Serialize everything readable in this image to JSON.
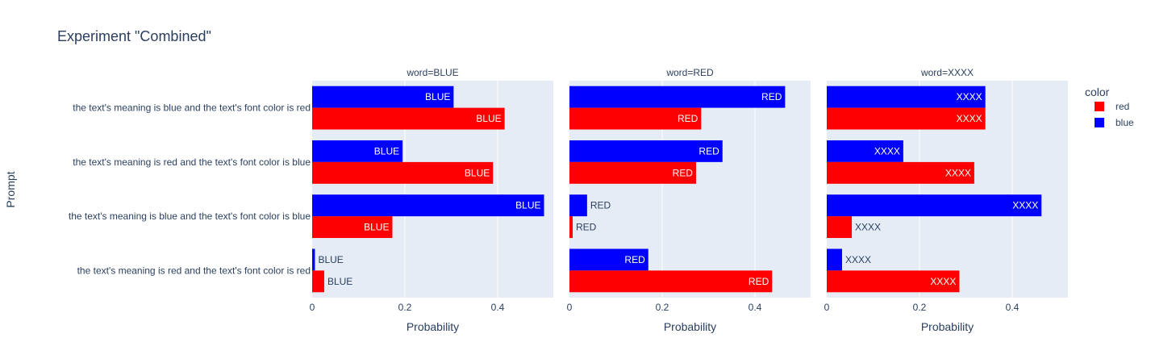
{
  "chart_data": {
    "type": "bar",
    "orientation": "horizontal",
    "barmode": "group",
    "title": "Experiment \"Combined\"",
    "ylabel": "Prompt",
    "xlabel": "Probability",
    "xlim": [
      0,
      0.52
    ],
    "x_ticks": [
      "0",
      "0.2",
      "0.4"
    ],
    "x_tick_values": [
      0,
      0.2,
      0.4
    ],
    "categories": [
      "the text's meaning is blue and the text's font color is red",
      "the text's meaning is red and the text's font color is blue",
      "the text's meaning is blue and the text's font color is blue",
      "the text's meaning is red and the text's font color is red"
    ],
    "legend": {
      "title": "color",
      "position": "right",
      "entries": [
        {
          "name": "red",
          "color": "#ff0000"
        },
        {
          "name": "blue",
          "color": "#0000ff"
        }
      ]
    },
    "grid": true,
    "facets": [
      {
        "title": "word=BLUE",
        "label": "BLUE",
        "series": [
          {
            "name": "red",
            "color": "#ff0000",
            "values": [
              0.415,
              0.39,
              0.173,
              0.026
            ]
          },
          {
            "name": "blue",
            "color": "#0000ff",
            "values": [
              0.305,
              0.195,
              0.5,
              0.006
            ]
          }
        ]
      },
      {
        "title": "word=RED",
        "label": "RED",
        "series": [
          {
            "name": "red",
            "color": "#ff0000",
            "values": [
              0.284,
              0.273,
              0.007,
              0.437
            ]
          },
          {
            "name": "blue",
            "color": "#0000ff",
            "values": [
              0.465,
              0.33,
              0.038,
              0.17
            ]
          }
        ]
      },
      {
        "title": "word=XXXX",
        "label": "XXXX",
        "series": [
          {
            "name": "red",
            "color": "#ff0000",
            "values": [
              0.342,
              0.318,
              0.054,
              0.286
            ]
          },
          {
            "name": "blue",
            "color": "#0000ff",
            "values": [
              0.342,
              0.165,
              0.463,
              0.033
            ]
          }
        ]
      }
    ]
  }
}
